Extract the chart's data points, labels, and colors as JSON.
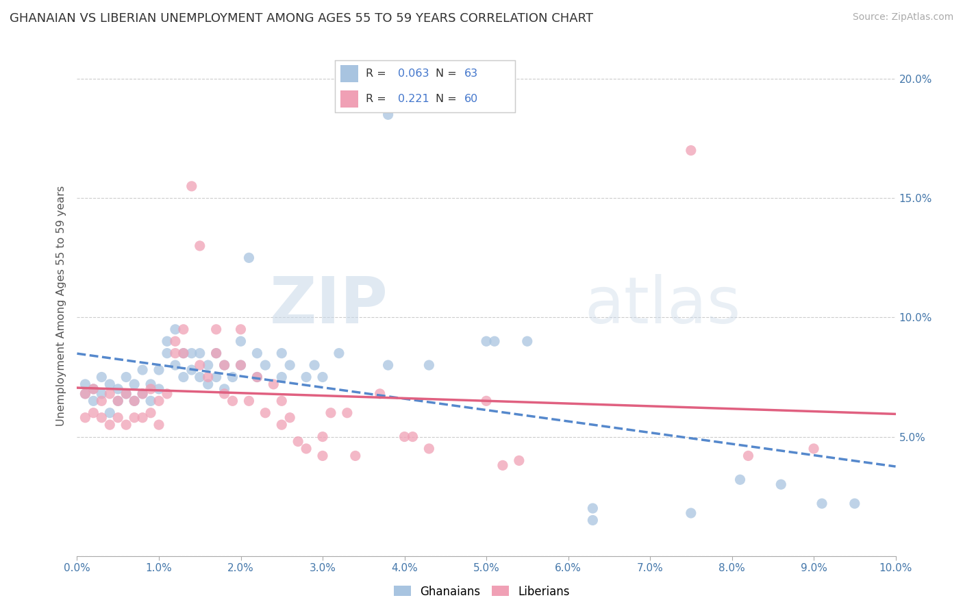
{
  "title": "GHANAIAN VS LIBERIAN UNEMPLOYMENT AMONG AGES 55 TO 59 YEARS CORRELATION CHART",
  "source": "Source: ZipAtlas.com",
  "ylabel": "Unemployment Among Ages 55 to 59 years",
  "xlim": [
    0.0,
    0.1
  ],
  "ylim": [
    0.0,
    0.21
  ],
  "xticks": [
    0.0,
    0.01,
    0.02,
    0.03,
    0.04,
    0.05,
    0.06,
    0.07,
    0.08,
    0.09,
    0.1
  ],
  "yticks": [
    0.0,
    0.05,
    0.1,
    0.15,
    0.2
  ],
  "ytick_labels_right": [
    "",
    "5.0%",
    "10.0%",
    "15.0%",
    "20.0%"
  ],
  "xtick_labels": [
    "0.0%",
    "1.0%",
    "2.0%",
    "3.0%",
    "4.0%",
    "5.0%",
    "6.0%",
    "7.0%",
    "8.0%",
    "9.0%",
    "10.0%"
  ],
  "ghanaian_color": "#a8c4e0",
  "liberian_color": "#f0a0b5",
  "ghanaian_line_color": "#5588cc",
  "liberian_line_color": "#e06080",
  "ghanaian_R": 0.063,
  "ghanaian_N": 63,
  "liberian_R": 0.221,
  "liberian_N": 60,
  "legend_R_N_color": "#4477cc",
  "background_color": "#ffffff",
  "ghanaian_scatter": [
    [
      0.001,
      0.068
    ],
    [
      0.001,
      0.072
    ],
    [
      0.002,
      0.065
    ],
    [
      0.002,
      0.07
    ],
    [
      0.003,
      0.068
    ],
    [
      0.003,
      0.075
    ],
    [
      0.004,
      0.06
    ],
    [
      0.004,
      0.072
    ],
    [
      0.005,
      0.065
    ],
    [
      0.005,
      0.07
    ],
    [
      0.006,
      0.068
    ],
    [
      0.006,
      0.075
    ],
    [
      0.007,
      0.065
    ],
    [
      0.007,
      0.072
    ],
    [
      0.008,
      0.068
    ],
    [
      0.008,
      0.078
    ],
    [
      0.009,
      0.065
    ],
    [
      0.009,
      0.072
    ],
    [
      0.01,
      0.07
    ],
    [
      0.01,
      0.078
    ],
    [
      0.011,
      0.085
    ],
    [
      0.011,
      0.09
    ],
    [
      0.012,
      0.08
    ],
    [
      0.012,
      0.095
    ],
    [
      0.013,
      0.075
    ],
    [
      0.013,
      0.085
    ],
    [
      0.014,
      0.078
    ],
    [
      0.014,
      0.085
    ],
    [
      0.015,
      0.075
    ],
    [
      0.015,
      0.085
    ],
    [
      0.016,
      0.072
    ],
    [
      0.016,
      0.08
    ],
    [
      0.017,
      0.075
    ],
    [
      0.017,
      0.085
    ],
    [
      0.018,
      0.07
    ],
    [
      0.018,
      0.08
    ],
    [
      0.019,
      0.075
    ],
    [
      0.02,
      0.08
    ],
    [
      0.02,
      0.09
    ],
    [
      0.021,
      0.125
    ],
    [
      0.022,
      0.075
    ],
    [
      0.022,
      0.085
    ],
    [
      0.023,
      0.08
    ],
    [
      0.025,
      0.075
    ],
    [
      0.025,
      0.085
    ],
    [
      0.026,
      0.08
    ],
    [
      0.028,
      0.075
    ],
    [
      0.029,
      0.08
    ],
    [
      0.03,
      0.075
    ],
    [
      0.032,
      0.085
    ],
    [
      0.038,
      0.185
    ],
    [
      0.038,
      0.08
    ],
    [
      0.043,
      0.08
    ],
    [
      0.05,
      0.09
    ],
    [
      0.051,
      0.09
    ],
    [
      0.055,
      0.09
    ],
    [
      0.063,
      0.02
    ],
    [
      0.063,
      0.015
    ],
    [
      0.075,
      0.018
    ],
    [
      0.081,
      0.032
    ],
    [
      0.086,
      0.03
    ],
    [
      0.091,
      0.022
    ],
    [
      0.095,
      0.022
    ]
  ],
  "liberian_scatter": [
    [
      0.001,
      0.068
    ],
    [
      0.001,
      0.058
    ],
    [
      0.002,
      0.06
    ],
    [
      0.002,
      0.07
    ],
    [
      0.003,
      0.058
    ],
    [
      0.003,
      0.065
    ],
    [
      0.004,
      0.055
    ],
    [
      0.004,
      0.068
    ],
    [
      0.005,
      0.058
    ],
    [
      0.005,
      0.065
    ],
    [
      0.006,
      0.055
    ],
    [
      0.006,
      0.068
    ],
    [
      0.007,
      0.058
    ],
    [
      0.007,
      0.065
    ],
    [
      0.008,
      0.058
    ],
    [
      0.008,
      0.068
    ],
    [
      0.009,
      0.06
    ],
    [
      0.009,
      0.07
    ],
    [
      0.01,
      0.055
    ],
    [
      0.01,
      0.065
    ],
    [
      0.011,
      0.068
    ],
    [
      0.012,
      0.085
    ],
    [
      0.012,
      0.09
    ],
    [
      0.013,
      0.085
    ],
    [
      0.013,
      0.095
    ],
    [
      0.014,
      0.155
    ],
    [
      0.015,
      0.08
    ],
    [
      0.015,
      0.13
    ],
    [
      0.016,
      0.075
    ],
    [
      0.017,
      0.085
    ],
    [
      0.017,
      0.095
    ],
    [
      0.018,
      0.068
    ],
    [
      0.018,
      0.08
    ],
    [
      0.019,
      0.065
    ],
    [
      0.02,
      0.08
    ],
    [
      0.02,
      0.095
    ],
    [
      0.021,
      0.065
    ],
    [
      0.022,
      0.075
    ],
    [
      0.023,
      0.06
    ],
    [
      0.024,
      0.072
    ],
    [
      0.025,
      0.055
    ],
    [
      0.025,
      0.065
    ],
    [
      0.026,
      0.058
    ],
    [
      0.027,
      0.048
    ],
    [
      0.028,
      0.045
    ],
    [
      0.03,
      0.042
    ],
    [
      0.03,
      0.05
    ],
    [
      0.031,
      0.06
    ],
    [
      0.033,
      0.06
    ],
    [
      0.034,
      0.042
    ],
    [
      0.037,
      0.068
    ],
    [
      0.04,
      0.05
    ],
    [
      0.041,
      0.05
    ],
    [
      0.043,
      0.045
    ],
    [
      0.05,
      0.065
    ],
    [
      0.052,
      0.038
    ],
    [
      0.054,
      0.04
    ],
    [
      0.075,
      0.17
    ],
    [
      0.082,
      0.042
    ],
    [
      0.09,
      0.045
    ]
  ]
}
